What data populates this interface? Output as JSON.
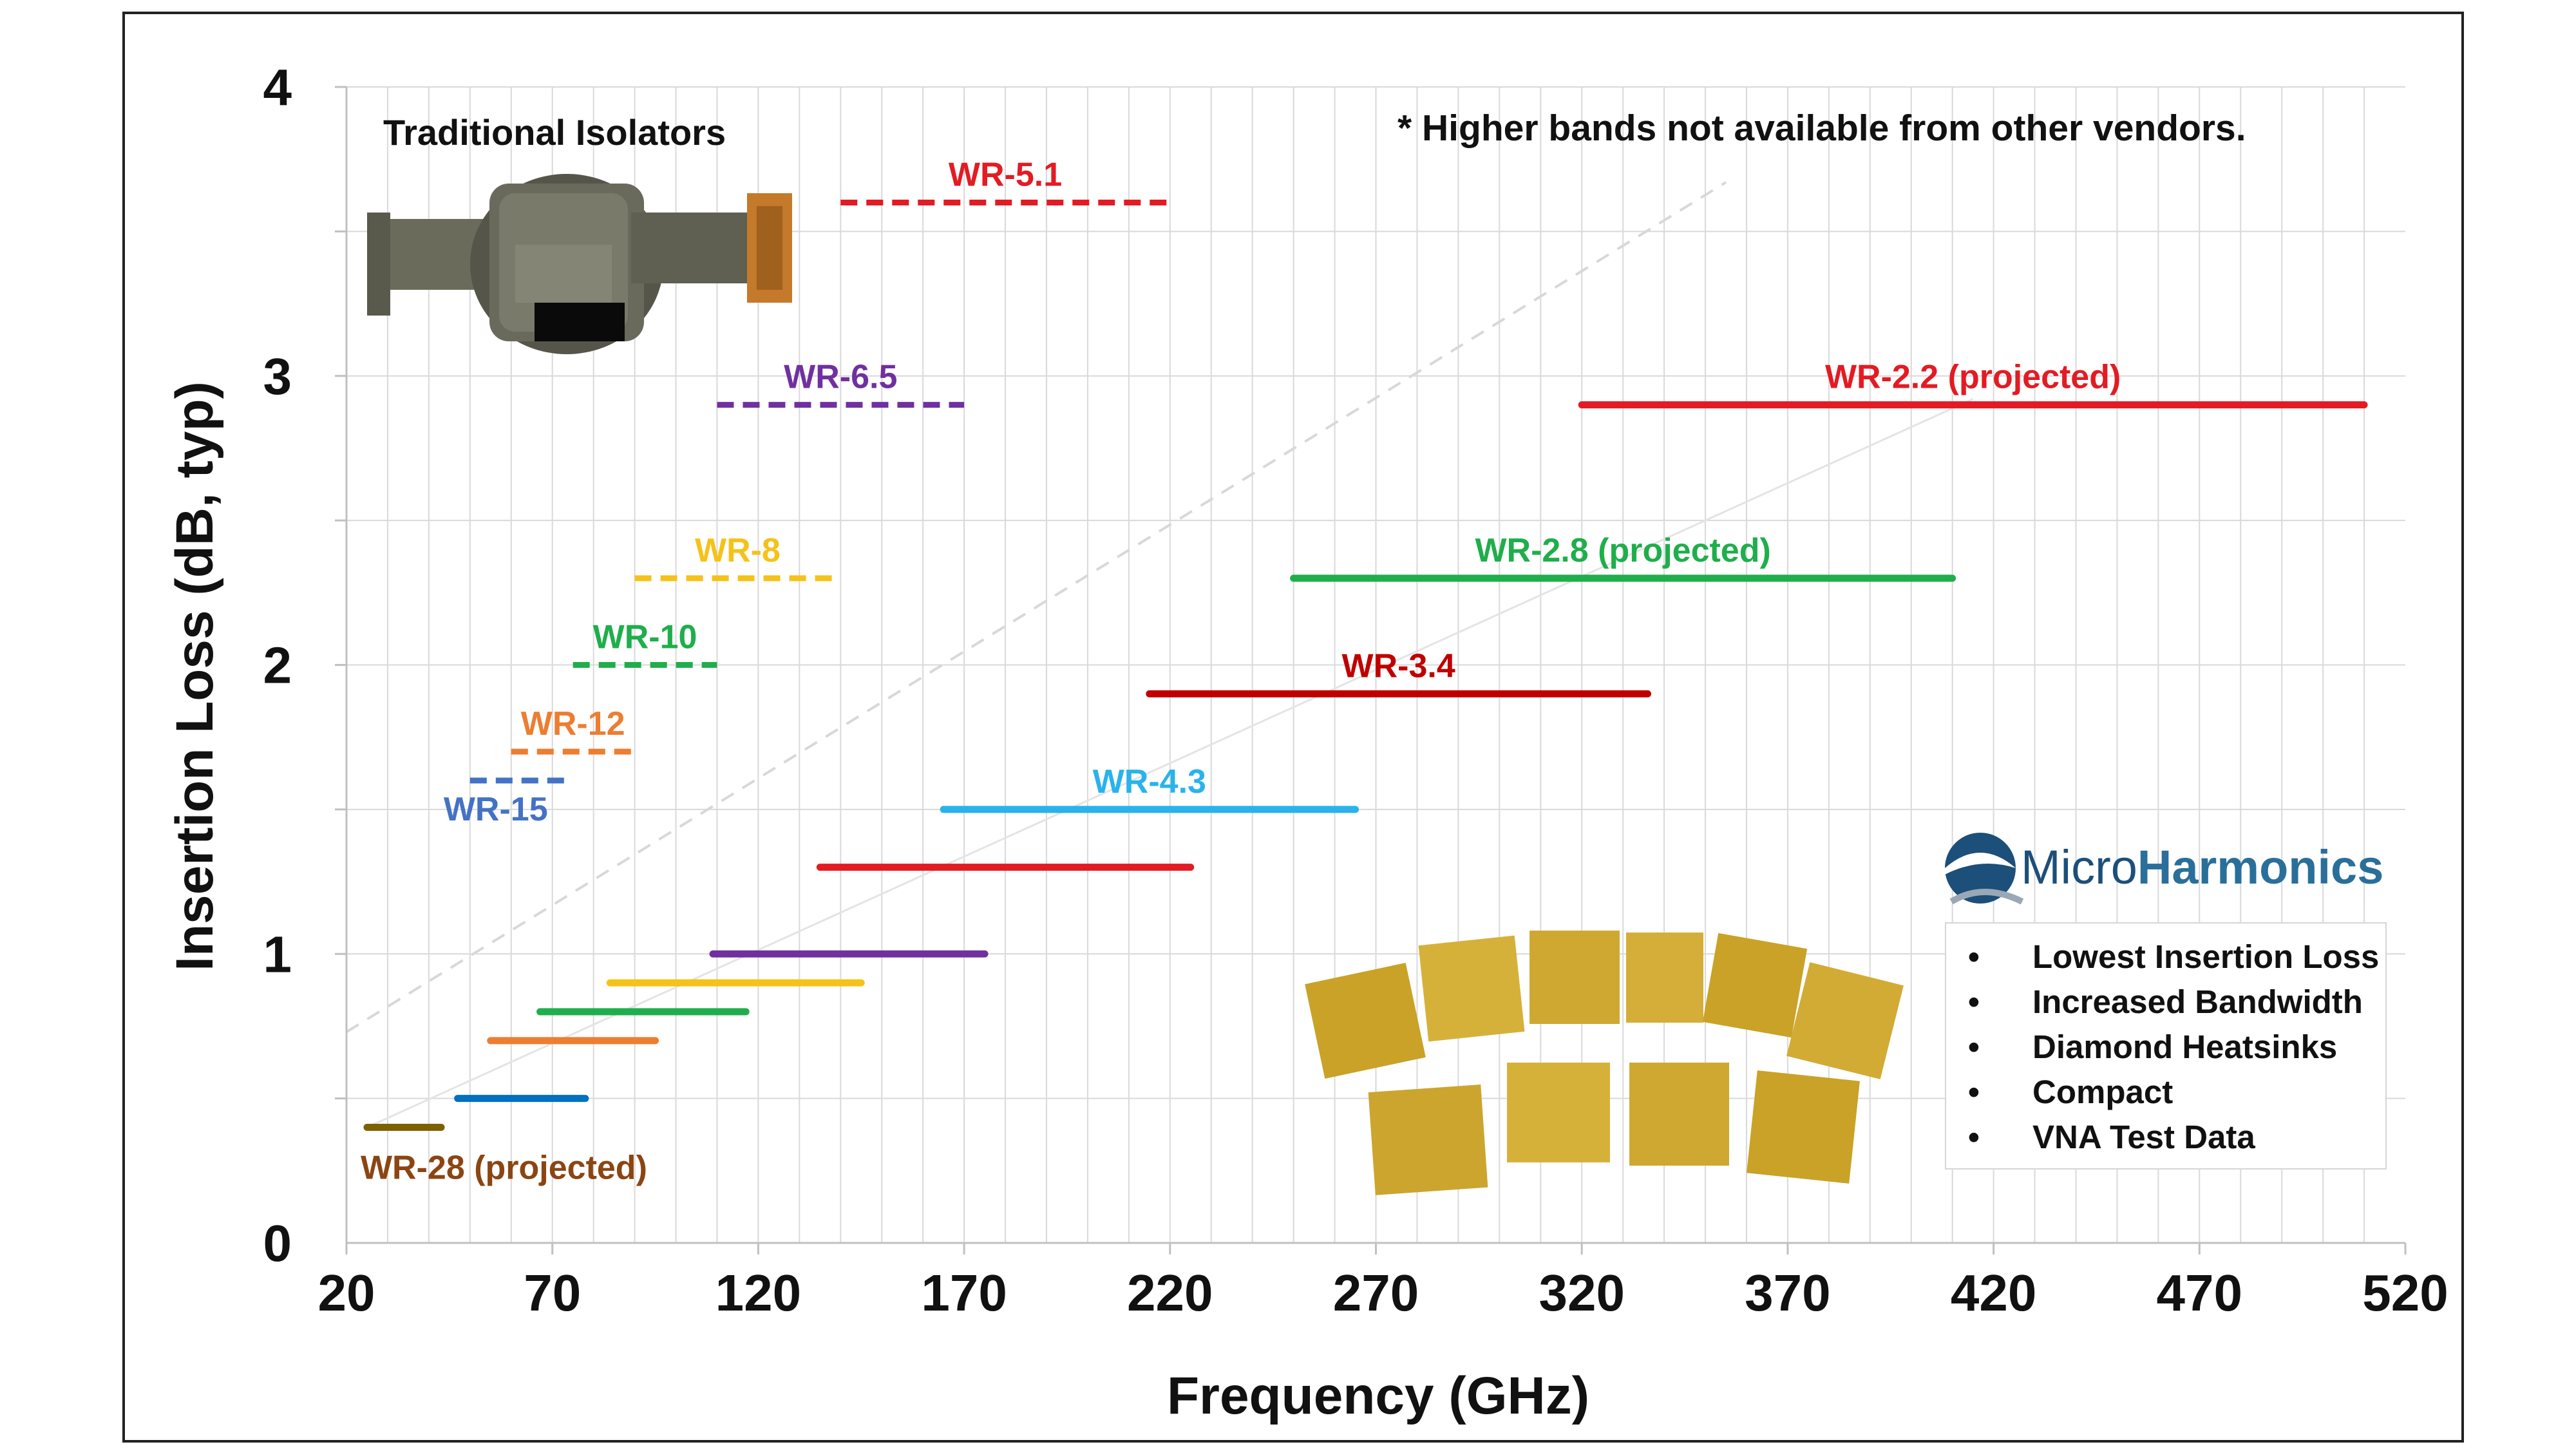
{
  "chart_data": {
    "type": "line",
    "title": "",
    "xlabel": "Frequency (GHz)",
    "ylabel": "Insertion Loss (dB, typ)",
    "xlim": [
      20,
      520
    ],
    "ylim": [
      0,
      4
    ],
    "xticks": [
      20,
      70,
      120,
      170,
      220,
      270,
      320,
      370,
      420,
      470,
      520
    ],
    "yticks": [
      0,
      1,
      2,
      3,
      4
    ],
    "grid": true,
    "note": "* Higher bands not available from other vendors.",
    "traditional_label": "Traditional Isolators",
    "traditional_series": [
      {
        "name": "WR-5.1",
        "x": [
          140,
          220
        ],
        "y": [
          3.6,
          3.6
        ],
        "color": "#e31b23",
        "style": "dashed"
      },
      {
        "name": "WR-6.5",
        "x": [
          110,
          170
        ],
        "y": [
          2.9,
          2.9
        ],
        "color": "#7030a0",
        "style": "dashed"
      },
      {
        "name": "WR-8",
        "x": [
          90,
          140
        ],
        "y": [
          2.3,
          2.3
        ],
        "color": "#f5c21a",
        "style": "dashed"
      },
      {
        "name": "WR-10",
        "x": [
          75,
          110
        ],
        "y": [
          2.0,
          2.0
        ],
        "color": "#1fae4b",
        "style": "dashed"
      },
      {
        "name": "WR-12",
        "x": [
          60,
          90
        ],
        "y": [
          1.7,
          1.7
        ],
        "color": "#ed7d31",
        "style": "dashed"
      },
      {
        "name": "WR-15",
        "x": [
          50,
          75
        ],
        "y": [
          1.6,
          1.6
        ],
        "color": "#4472c4",
        "style": "dashed"
      }
    ],
    "microharmonics_series": [
      {
        "name": "WR-28 (projected)",
        "x": [
          25,
          43
        ],
        "y": [
          0.4,
          0.4
        ],
        "color": "#7f6000",
        "labeled": true
      },
      {
        "name": "WR-15",
        "x": [
          47,
          78
        ],
        "y": [
          0.5,
          0.5
        ],
        "color": "#0070c0",
        "labeled": false
      },
      {
        "name": "WR-12",
        "x": [
          55,
          95
        ],
        "y": [
          0.7,
          0.7
        ],
        "color": "#ed7d31",
        "labeled": false
      },
      {
        "name": "WR-10",
        "x": [
          67,
          117
        ],
        "y": [
          0.8,
          0.8
        ],
        "color": "#1fae4b",
        "labeled": false
      },
      {
        "name": "WR-8",
        "x": [
          84,
          145
        ],
        "y": [
          0.9,
          0.9
        ],
        "color": "#f5c21a",
        "labeled": false
      },
      {
        "name": "WR-6.5",
        "x": [
          109,
          175
        ],
        "y": [
          1.0,
          1.0
        ],
        "color": "#7030a0",
        "labeled": false
      },
      {
        "name": "WR-5.1",
        "x": [
          135,
          225
        ],
        "y": [
          1.3,
          1.3
        ],
        "color": "#e31b23",
        "labeled": false
      },
      {
        "name": "WR-4.3",
        "x": [
          165,
          265
        ],
        "y": [
          1.5,
          1.5
        ],
        "color": "#29b3ea",
        "labeled": true
      },
      {
        "name": "WR-3.4",
        "x": [
          215,
          336
        ],
        "y": [
          1.9,
          1.9
        ],
        "color": "#c00000",
        "labeled": true
      },
      {
        "name": "WR-2.8 (projected)",
        "x": [
          250,
          410
        ],
        "y": [
          2.3,
          2.3
        ],
        "color": "#1fae4b",
        "labeled": true
      },
      {
        "name": "WR-2.2 (projected)",
        "x": [
          320,
          510
        ],
        "y": [
          2.9,
          2.9
        ],
        "color": "#e31b23",
        "labeled": true
      }
    ],
    "trend_dashed": {
      "x": [
        20,
        355
      ],
      "y": [
        0.73,
        3.67
      ],
      "color": "#d8d8d8"
    },
    "trend_solid": {
      "x": [
        25,
        415
      ],
      "y": [
        0.4,
        2.92
      ],
      "color": "#e4e4e4"
    }
  },
  "brand": {
    "name_part1": "Micro",
    "name_part2": "Harmonics"
  },
  "features": [
    "Lowest Insertion Loss",
    "Increased Bandwidth",
    "Diamond Heatsinks",
    "Compact",
    "VNA Test Data"
  ],
  "bullet_symbol": "•",
  "colors": {
    "axis": "#111111",
    "grid": "#d9d9d9",
    "brand": "#1c4f79"
  }
}
